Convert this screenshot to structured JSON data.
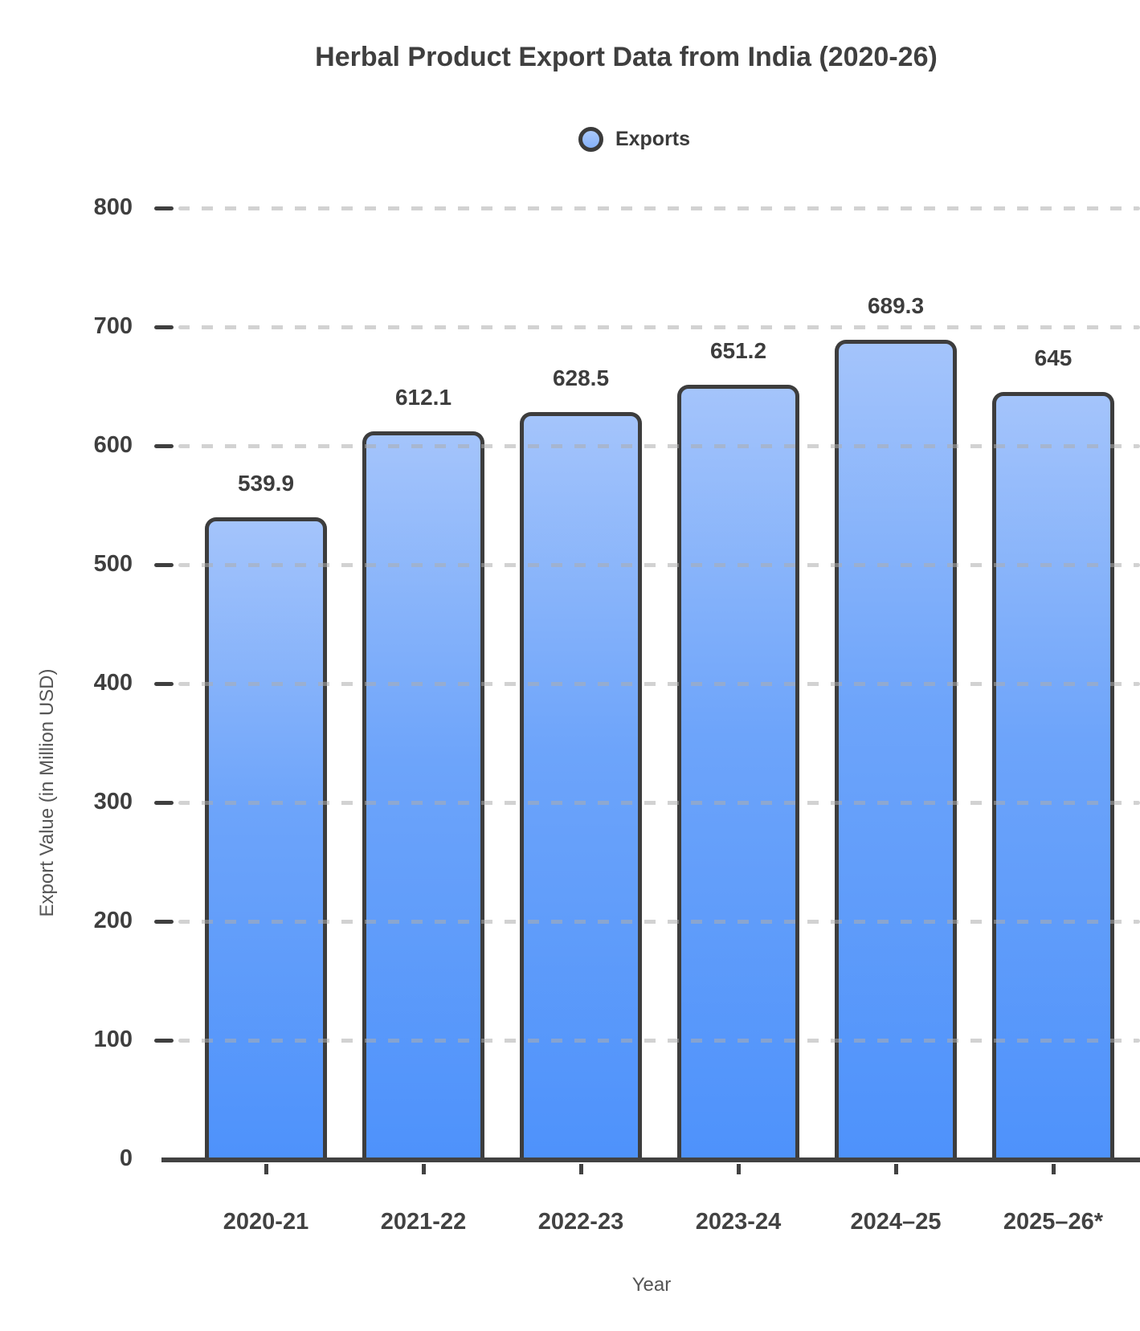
{
  "title": "Herbal Product Export Data from India (2020-26)",
  "legend": {
    "label": "Exports"
  },
  "axes": {
    "y_title": "Export Value (in Million USD)",
    "x_title": "Year"
  },
  "colors": {
    "bar_fill_top": "#a4c4fb",
    "bar_fill_bottom": "#4e92fb",
    "bar_outline": "#3d3d3d",
    "axis": "#424242",
    "gridline": "#d9d9d9",
    "text_primary": "#3f3f3f",
    "text_secondary": "#555555"
  },
  "chart_data": {
    "type": "bar",
    "title": "Herbal Product Export Data from India (2020-26)",
    "categories": [
      "2020-21",
      "2021-22",
      "2022-23",
      "2023-24",
      "2024–25",
      "2025–26*"
    ],
    "series": [
      {
        "name": "Exports",
        "values": [
          539.9,
          612.1,
          628.5,
          651.2,
          689.3,
          645
        ]
      }
    ],
    "data_labels": [
      "539.9",
      "612.1",
      "628.5",
      "651.2",
      "689.3",
      "645"
    ],
    "xlabel": "Year",
    "ylabel": "Export Value (in Million USD)",
    "ylim": [
      0,
      800
    ],
    "yticks": [
      0,
      100,
      200,
      300,
      400,
      500,
      600,
      700,
      800
    ],
    "grid": "horizontal-dashed",
    "legend_position": "top-center"
  }
}
